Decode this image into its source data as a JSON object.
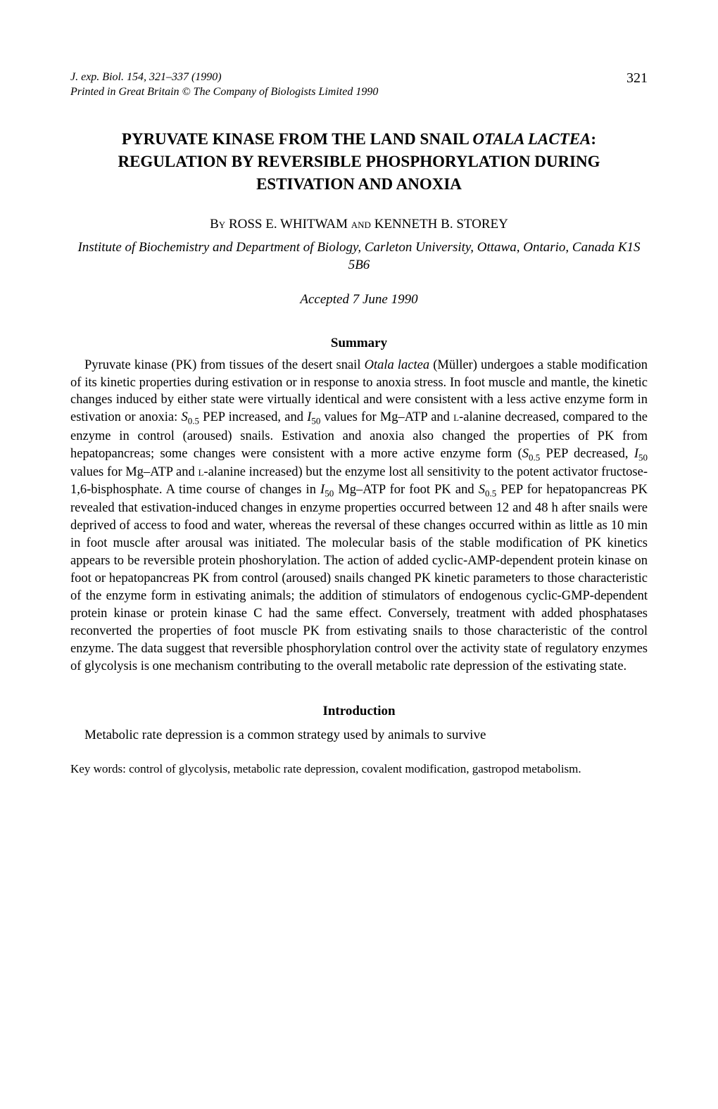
{
  "header": {
    "journal_line1": "J. exp. Biol. 154, 321–337 (1990)",
    "journal_line2": "Printed in Great Britain © The Company of Biologists Limited 1990",
    "page_number": "321"
  },
  "title": {
    "part1": "PYRUVATE KINASE FROM THE LAND SNAIL ",
    "italic1": "OTALA LACTEA",
    "part2": ": REGULATION BY REVERSIBLE PHOSPHORYLATION DURING ESTIVATION AND ANOXIA"
  },
  "authors": {
    "by": "By ",
    "name1": "ROSS E. WHITWAM",
    "and": " and ",
    "name2": "KENNETH B. STOREY"
  },
  "affiliation": "Institute of Biochemistry and Department of Biology, Carleton University, Ottawa, Ontario, Canada K1S 5B6",
  "accepted": "Accepted 7 June 1990",
  "summary": {
    "heading": "Summary",
    "text_p1": "Pyruvate kinase (PK) from tissues of the desert snail ",
    "text_italic1": "Otala lactea",
    "text_p2": " (Müller) undergoes a stable modification of its kinetic properties during estivation or in response to anoxia stress. In foot muscle and mantle, the kinetic changes induced by either state were virtually identical and were consistent with a less active enzyme form in estivation or anoxia: ",
    "text_italic2": "S",
    "text_sub1": "0.5",
    "text_p3": " PEP increased, and ",
    "text_italic3": "I",
    "text_sub2": "50",
    "text_p4": " values for Mg–ATP and ",
    "text_sc1": "l",
    "text_p5": "-alanine decreased, compared to the enzyme in control (aroused) snails. Estivation and anoxia also changed the properties of PK from hepatopancreas; some changes were consistent with a more active enzyme form (",
    "text_italic4": "S",
    "text_sub3": "0.5",
    "text_p6": " PEP decreased, ",
    "text_italic5": "I",
    "text_sub4": "50",
    "text_p7": " values for Mg–ATP and ",
    "text_sc2": "l",
    "text_p8": "-alanine increased) but the enzyme lost all sensitivity to the potent activator fructose-1,6-bisphosphate. A time course of changes in ",
    "text_italic6": "I",
    "text_sub5": "50",
    "text_p9": " Mg–ATP for foot PK and ",
    "text_italic7": "S",
    "text_sub6": "0.5",
    "text_p10": " PEP for hepatopancreas PK revealed that estivation-induced changes in enzyme properties occurred between 12 and 48 h after snails were deprived of access to food and water, whereas the reversal of these changes occurred within as little as 10 min in foot muscle after arousal was initiated. The molecular basis of the stable modification of PK kinetics appears to be reversible protein phoshorylation. The action of added cyclic-AMP-dependent protein kinase on foot or hepatopancreas PK from control (aroused) snails changed PK kinetic parameters to those characteristic of the enzyme form in estivating animals; the addition of stimulators of endogenous cyclic-GMP-dependent protein kinase or protein kinase C had the same effect. Conversely, treatment with added phosphatases reconverted the properties of foot muscle PK from estivating snails to those characteristic of the control enzyme. The data suggest that reversible phosphorylation control over the activity state of regulatory enzymes of glycolysis is one mechanism contributing to the overall metabolic rate depression of the estivating state."
  },
  "introduction": {
    "heading": "Introduction",
    "text": "Metabolic rate depression is a common strategy used by animals to survive"
  },
  "keywords": "Key words: control of glycolysis, metabolic rate depression, covalent modification, gastropod metabolism."
}
